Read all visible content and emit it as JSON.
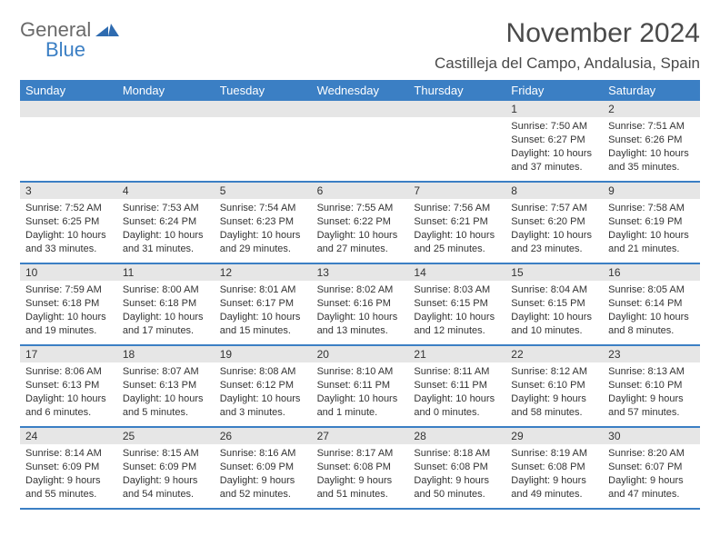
{
  "logo": {
    "part1": "General",
    "part2": "Blue"
  },
  "title": "November 2024",
  "location": "Castilleja del Campo, Andalusia, Spain",
  "colors": {
    "header_bg": "#3b7fc4",
    "header_text": "#ffffff",
    "daynum_bg": "#e6e6e6",
    "border": "#3b7fc4",
    "text": "#333333",
    "title_text": "#4a4a4a",
    "logo_gray": "#6a6a6a",
    "logo_blue": "#3b7fc4",
    "background": "#ffffff"
  },
  "days_of_week": [
    "Sunday",
    "Monday",
    "Tuesday",
    "Wednesday",
    "Thursday",
    "Friday",
    "Saturday"
  ],
  "weeks": [
    [
      null,
      null,
      null,
      null,
      null,
      {
        "n": "1",
        "sunrise": "Sunrise: 7:50 AM",
        "sunset": "Sunset: 6:27 PM",
        "day1": "Daylight: 10 hours",
        "day2": "and 37 minutes."
      },
      {
        "n": "2",
        "sunrise": "Sunrise: 7:51 AM",
        "sunset": "Sunset: 6:26 PM",
        "day1": "Daylight: 10 hours",
        "day2": "and 35 minutes."
      }
    ],
    [
      {
        "n": "3",
        "sunrise": "Sunrise: 7:52 AM",
        "sunset": "Sunset: 6:25 PM",
        "day1": "Daylight: 10 hours",
        "day2": "and 33 minutes."
      },
      {
        "n": "4",
        "sunrise": "Sunrise: 7:53 AM",
        "sunset": "Sunset: 6:24 PM",
        "day1": "Daylight: 10 hours",
        "day2": "and 31 minutes."
      },
      {
        "n": "5",
        "sunrise": "Sunrise: 7:54 AM",
        "sunset": "Sunset: 6:23 PM",
        "day1": "Daylight: 10 hours",
        "day2": "and 29 minutes."
      },
      {
        "n": "6",
        "sunrise": "Sunrise: 7:55 AM",
        "sunset": "Sunset: 6:22 PM",
        "day1": "Daylight: 10 hours",
        "day2": "and 27 minutes."
      },
      {
        "n": "7",
        "sunrise": "Sunrise: 7:56 AM",
        "sunset": "Sunset: 6:21 PM",
        "day1": "Daylight: 10 hours",
        "day2": "and 25 minutes."
      },
      {
        "n": "8",
        "sunrise": "Sunrise: 7:57 AM",
        "sunset": "Sunset: 6:20 PM",
        "day1": "Daylight: 10 hours",
        "day2": "and 23 minutes."
      },
      {
        "n": "9",
        "sunrise": "Sunrise: 7:58 AM",
        "sunset": "Sunset: 6:19 PM",
        "day1": "Daylight: 10 hours",
        "day2": "and 21 minutes."
      }
    ],
    [
      {
        "n": "10",
        "sunrise": "Sunrise: 7:59 AM",
        "sunset": "Sunset: 6:18 PM",
        "day1": "Daylight: 10 hours",
        "day2": "and 19 minutes."
      },
      {
        "n": "11",
        "sunrise": "Sunrise: 8:00 AM",
        "sunset": "Sunset: 6:18 PM",
        "day1": "Daylight: 10 hours",
        "day2": "and 17 minutes."
      },
      {
        "n": "12",
        "sunrise": "Sunrise: 8:01 AM",
        "sunset": "Sunset: 6:17 PM",
        "day1": "Daylight: 10 hours",
        "day2": "and 15 minutes."
      },
      {
        "n": "13",
        "sunrise": "Sunrise: 8:02 AM",
        "sunset": "Sunset: 6:16 PM",
        "day1": "Daylight: 10 hours",
        "day2": "and 13 minutes."
      },
      {
        "n": "14",
        "sunrise": "Sunrise: 8:03 AM",
        "sunset": "Sunset: 6:15 PM",
        "day1": "Daylight: 10 hours",
        "day2": "and 12 minutes."
      },
      {
        "n": "15",
        "sunrise": "Sunrise: 8:04 AM",
        "sunset": "Sunset: 6:15 PM",
        "day1": "Daylight: 10 hours",
        "day2": "and 10 minutes."
      },
      {
        "n": "16",
        "sunrise": "Sunrise: 8:05 AM",
        "sunset": "Sunset: 6:14 PM",
        "day1": "Daylight: 10 hours",
        "day2": "and 8 minutes."
      }
    ],
    [
      {
        "n": "17",
        "sunrise": "Sunrise: 8:06 AM",
        "sunset": "Sunset: 6:13 PM",
        "day1": "Daylight: 10 hours",
        "day2": "and 6 minutes."
      },
      {
        "n": "18",
        "sunrise": "Sunrise: 8:07 AM",
        "sunset": "Sunset: 6:13 PM",
        "day1": "Daylight: 10 hours",
        "day2": "and 5 minutes."
      },
      {
        "n": "19",
        "sunrise": "Sunrise: 8:08 AM",
        "sunset": "Sunset: 6:12 PM",
        "day1": "Daylight: 10 hours",
        "day2": "and 3 minutes."
      },
      {
        "n": "20",
        "sunrise": "Sunrise: 8:10 AM",
        "sunset": "Sunset: 6:11 PM",
        "day1": "Daylight: 10 hours",
        "day2": "and 1 minute."
      },
      {
        "n": "21",
        "sunrise": "Sunrise: 8:11 AM",
        "sunset": "Sunset: 6:11 PM",
        "day1": "Daylight: 10 hours",
        "day2": "and 0 minutes."
      },
      {
        "n": "22",
        "sunrise": "Sunrise: 8:12 AM",
        "sunset": "Sunset: 6:10 PM",
        "day1": "Daylight: 9 hours",
        "day2": "and 58 minutes."
      },
      {
        "n": "23",
        "sunrise": "Sunrise: 8:13 AM",
        "sunset": "Sunset: 6:10 PM",
        "day1": "Daylight: 9 hours",
        "day2": "and 57 minutes."
      }
    ],
    [
      {
        "n": "24",
        "sunrise": "Sunrise: 8:14 AM",
        "sunset": "Sunset: 6:09 PM",
        "day1": "Daylight: 9 hours",
        "day2": "and 55 minutes."
      },
      {
        "n": "25",
        "sunrise": "Sunrise: 8:15 AM",
        "sunset": "Sunset: 6:09 PM",
        "day1": "Daylight: 9 hours",
        "day2": "and 54 minutes."
      },
      {
        "n": "26",
        "sunrise": "Sunrise: 8:16 AM",
        "sunset": "Sunset: 6:09 PM",
        "day1": "Daylight: 9 hours",
        "day2": "and 52 minutes."
      },
      {
        "n": "27",
        "sunrise": "Sunrise: 8:17 AM",
        "sunset": "Sunset: 6:08 PM",
        "day1": "Daylight: 9 hours",
        "day2": "and 51 minutes."
      },
      {
        "n": "28",
        "sunrise": "Sunrise: 8:18 AM",
        "sunset": "Sunset: 6:08 PM",
        "day1": "Daylight: 9 hours",
        "day2": "and 50 minutes."
      },
      {
        "n": "29",
        "sunrise": "Sunrise: 8:19 AM",
        "sunset": "Sunset: 6:08 PM",
        "day1": "Daylight: 9 hours",
        "day2": "and 49 minutes."
      },
      {
        "n": "30",
        "sunrise": "Sunrise: 8:20 AM",
        "sunset": "Sunset: 6:07 PM",
        "day1": "Daylight: 9 hours",
        "day2": "and 47 minutes."
      }
    ]
  ]
}
